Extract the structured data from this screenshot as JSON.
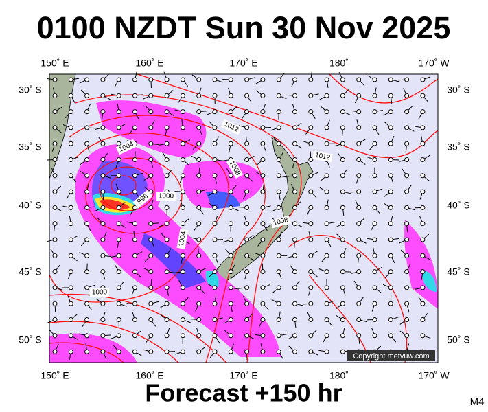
{
  "title": "0100 NZDT Sun 30 Nov 2025",
  "lon_labels_top": [
    "150˚ E",
    "160˚ E",
    "170˚ E",
    "180˚",
    "170˚ W"
  ],
  "lon_labels_bottom": [
    "150˚ E",
    "160˚ E",
    "170˚ E",
    "180˚",
    "170˚ W"
  ],
  "lat_labels_left": [
    "30˚ S",
    "35˚ S",
    "40˚ S",
    "45˚ S",
    "50˚ S"
  ],
  "lat_labels_right": [
    "30˚ S",
    "35˚ S",
    "40˚ S",
    "45˚ S",
    "50˚ S"
  ],
  "isobar_labels": [
    "1012",
    "1004",
    "1008",
    "1012",
    "996",
    "1000",
    "1008",
    "1004",
    "1000"
  ],
  "copyright": "Copyright metvuw.com",
  "footer": "Forecast +150 hr",
  "model": "M4"
}
